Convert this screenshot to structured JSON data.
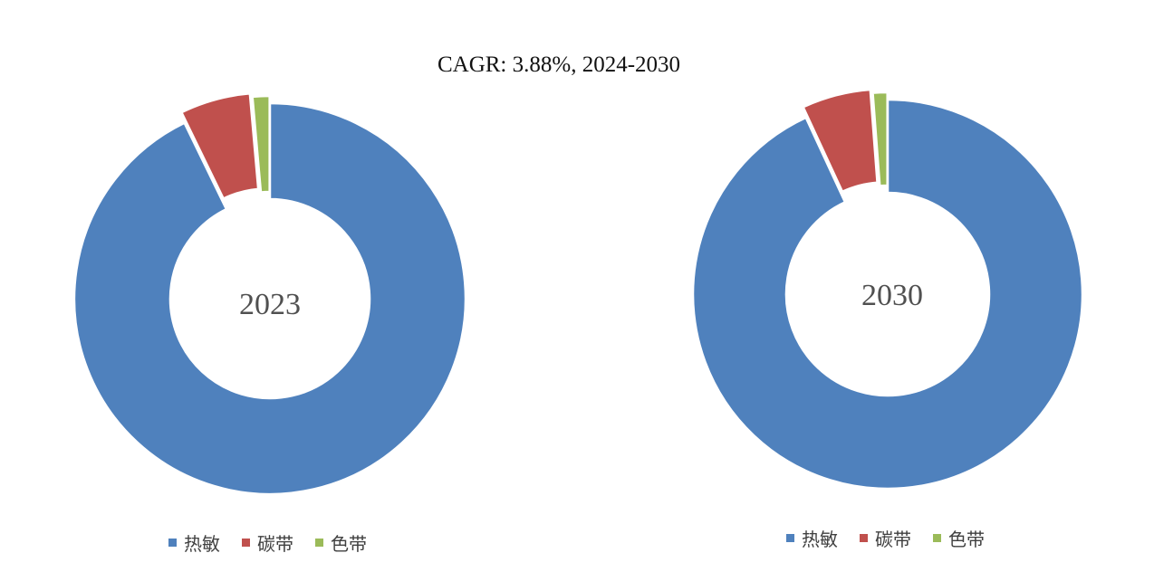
{
  "colors": {
    "热敏": "#4F81BD",
    "碳带": "#C0504D",
    "色带": "#9BBB59"
  },
  "chart_data": [
    {
      "type": "pie",
      "title": "CAGR: 3.88%, 2024-2030",
      "center_label": "2023",
      "legend_position": "bottom",
      "categories": [
        "热敏",
        "碳带",
        "色带"
      ],
      "values": [
        92.8,
        5.8,
        1.4
      ]
    },
    {
      "type": "pie",
      "title": "CAGR: 3.88%, 2024-2030",
      "center_label": "2030",
      "legend_position": "bottom",
      "categories": [
        "热敏",
        "碳带",
        "色带"
      ],
      "values": [
        93.1,
        5.7,
        1.2
      ]
    }
  ]
}
